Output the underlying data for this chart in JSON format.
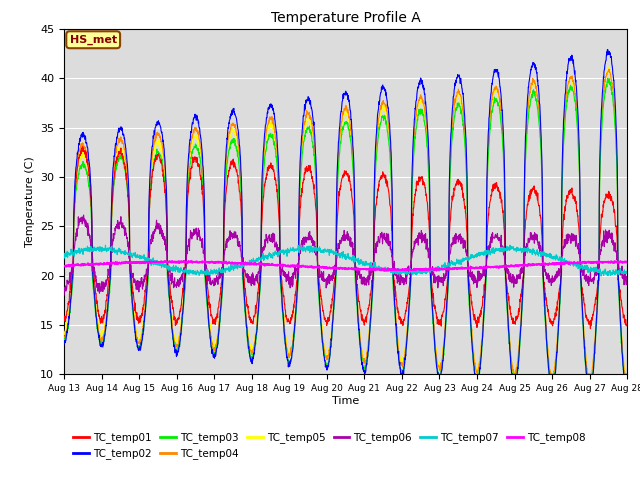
{
  "title": "Temperature Profile A",
  "xlabel": "Time",
  "ylabel": "Temperature (C)",
  "ylim": [
    10,
    45
  ],
  "series_colors": {
    "TC_temp01": "#FF0000",
    "TC_temp02": "#0000FF",
    "TC_temp03": "#00EE00",
    "TC_temp04": "#FF8800",
    "TC_temp05": "#FFFF00",
    "TC_temp06": "#AA00AA",
    "TC_temp07": "#00CCCC",
    "TC_temp08": "#FF00FF"
  },
  "annotation_text": "HS_met",
  "annotation_box_color": "#FFFF99",
  "annotation_border_color": "#884400",
  "annotation_text_color": "#880000",
  "background_color": "#DCDCDC",
  "grid_color": "#FFFFFF",
  "tick_dates": [
    "Aug 13",
    "Aug 14",
    "Aug 15",
    "Aug 16",
    "Aug 17",
    "Aug 18",
    "Aug 19",
    "Aug 20",
    "Aug 21",
    "Aug 22",
    "Aug 23",
    "Aug 24",
    "Aug 25",
    "Aug 26",
    "Aug 27",
    "Aug 28"
  ],
  "num_days": 15,
  "points_per_day": 144
}
